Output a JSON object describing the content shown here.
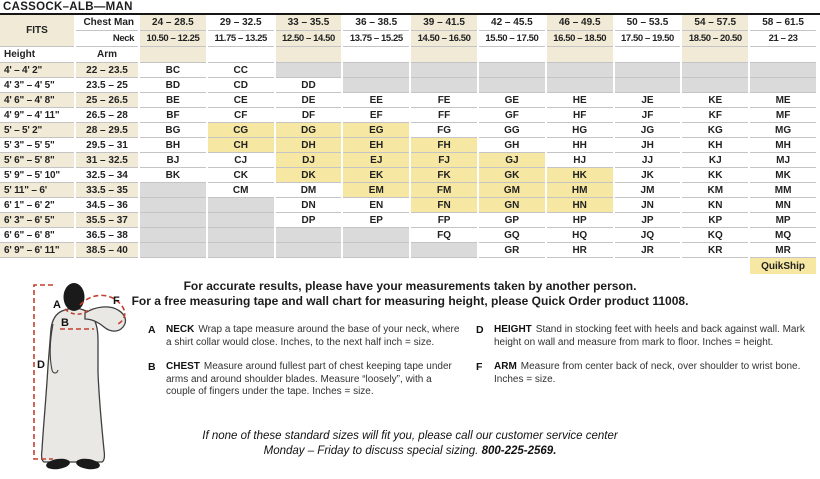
{
  "title": "CASSOCK–ALB—MAN",
  "table": {
    "fits_label": "FITS",
    "chest_row_label": "Chest Man",
    "neck_row_label": "Neck",
    "height_col_label": "Height",
    "arm_col_label": "Arm",
    "chest_ranges": [
      "24 – 28.5",
      "29 – 32.5",
      "33 – 35.5",
      "36 – 38.5",
      "39 – 41.5",
      "42 – 45.5",
      "46 – 49.5",
      "50 – 53.5",
      "54 – 57.5",
      "58 – 61.5"
    ],
    "neck_ranges": [
      "10.50 – 12.25",
      "11.75 – 13.25",
      "12.50 – 14.50",
      "13.75 – 15.25",
      "14.50 – 16.50",
      "15.50 – 17.50",
      "16.50 – 18.50",
      "17.50 – 19.50",
      "18.50 – 20.50",
      "21 – 23"
    ],
    "rows": [
      {
        "height": "4' – 4' 2\"",
        "arm": "22 – 23.5",
        "cells": [
          "BC",
          "CC",
          "",
          "",
          "",
          "",
          "",
          "",
          "",
          ""
        ],
        "states": [
          "n",
          "n",
          "x",
          "x",
          "x",
          "x",
          "x",
          "x",
          "x",
          "x"
        ]
      },
      {
        "height": "4' 3\" – 4' 5\"",
        "arm": "23.5 – 25",
        "cells": [
          "BD",
          "CD",
          "DD",
          "",
          "",
          "",
          "",
          "",
          "",
          ""
        ],
        "states": [
          "n",
          "n",
          "n",
          "x",
          "x",
          "x",
          "x",
          "x",
          "x",
          "x"
        ]
      },
      {
        "height": "4' 6\" – 4' 8\"",
        "arm": "25 – 26.5",
        "cells": [
          "BE",
          "CE",
          "DE",
          "EE",
          "FE",
          "GE",
          "HE",
          "JE",
          "KE",
          "ME"
        ],
        "states": [
          "n",
          "n",
          "n",
          "n",
          "n",
          "n",
          "n",
          "n",
          "n",
          "n"
        ]
      },
      {
        "height": "4' 9\" – 4' 11\"",
        "arm": "26.5 – 28",
        "cells": [
          "BF",
          "CF",
          "DF",
          "EF",
          "FF",
          "GF",
          "HF",
          "JF",
          "KF",
          "MF"
        ],
        "states": [
          "n",
          "n",
          "n",
          "n",
          "n",
          "n",
          "n",
          "n",
          "n",
          "n"
        ]
      },
      {
        "height": "5' – 5' 2\"",
        "arm": "28 – 29.5",
        "cells": [
          "BG",
          "CG",
          "DG",
          "EG",
          "FG",
          "GG",
          "HG",
          "JG",
          "KG",
          "MG"
        ],
        "states": [
          "n",
          "q",
          "q",
          "q",
          "n",
          "n",
          "n",
          "n",
          "n",
          "n"
        ]
      },
      {
        "height": "5' 3\" – 5' 5\"",
        "arm": "29.5 – 31",
        "cells": [
          "BH",
          "CH",
          "DH",
          "EH",
          "FH",
          "GH",
          "HH",
          "JH",
          "KH",
          "MH"
        ],
        "states": [
          "n",
          "q",
          "q",
          "q",
          "q",
          "n",
          "n",
          "n",
          "n",
          "n"
        ]
      },
      {
        "height": "5' 6\" – 5' 8\"",
        "arm": "31 – 32.5",
        "cells": [
          "BJ",
          "CJ",
          "DJ",
          "EJ",
          "FJ",
          "GJ",
          "HJ",
          "JJ",
          "KJ",
          "MJ"
        ],
        "states": [
          "n",
          "n",
          "q",
          "q",
          "q",
          "q",
          "n",
          "n",
          "n",
          "n"
        ]
      },
      {
        "height": "5' 9\" – 5' 10\"",
        "arm": "32.5 – 34",
        "cells": [
          "BK",
          "CK",
          "DK",
          "EK",
          "FK",
          "GK",
          "HK",
          "JK",
          "KK",
          "MK"
        ],
        "states": [
          "n",
          "n",
          "q",
          "q",
          "q",
          "q",
          "q",
          "n",
          "n",
          "n"
        ]
      },
      {
        "height": "5' 11\" – 6'",
        "arm": "33.5 – 35",
        "cells": [
          "",
          "CM",
          "DM",
          "EM",
          "FM",
          "GM",
          "HM",
          "JM",
          "KM",
          "MM"
        ],
        "states": [
          "x",
          "n",
          "n",
          "q",
          "q",
          "q",
          "q",
          "n",
          "n",
          "n"
        ]
      },
      {
        "height": "6' 1\" – 6' 2\"",
        "arm": "34.5 – 36",
        "cells": [
          "",
          "",
          "DN",
          "EN",
          "FN",
          "GN",
          "HN",
          "JN",
          "KN",
          "MN"
        ],
        "states": [
          "x",
          "x",
          "n",
          "n",
          "q",
          "q",
          "q",
          "n",
          "n",
          "n"
        ]
      },
      {
        "height": "6' 3\" – 6' 5\"",
        "arm": "35.5 – 37",
        "cells": [
          "",
          "",
          "DP",
          "EP",
          "FP",
          "GP",
          "HP",
          "JP",
          "KP",
          "MP"
        ],
        "states": [
          "x",
          "x",
          "n",
          "n",
          "n",
          "n",
          "n",
          "n",
          "n",
          "n"
        ]
      },
      {
        "height": "6' 6\" – 6' 8\"",
        "arm": "36.5 – 38",
        "cells": [
          "",
          "",
          "",
          "",
          "FQ",
          "GQ",
          "HQ",
          "JQ",
          "KQ",
          "MQ"
        ],
        "states": [
          "x",
          "x",
          "x",
          "x",
          "n",
          "n",
          "n",
          "n",
          "n",
          "n"
        ]
      },
      {
        "height": "6' 9\" – 6' 11\"",
        "arm": "38.5 – 40",
        "cells": [
          "",
          "",
          "",
          "",
          "",
          "GR",
          "HR",
          "JR",
          "KR",
          "MR"
        ],
        "states": [
          "x",
          "x",
          "x",
          "x",
          "x",
          "n",
          "n",
          "n",
          "n",
          "n"
        ]
      }
    ],
    "quikship_label": "QuikShip"
  },
  "notes": {
    "line1": "For accurate results, please have your measurements taken by another person.",
    "line2": "For a free measuring tape and wall chart for measuring height, please Quick Order product 11008."
  },
  "instructions": [
    {
      "letter": "A",
      "term": "NECK",
      "text": "Wrap a tape measure around the base of your neck, where a shirt collar would close. Inches, to the next half inch = size."
    },
    {
      "letter": "B",
      "term": "CHEST",
      "text": "Measure around fullest part of chest keeping tape under arms and around shoulder blades. Measure “loosely”, with a couple of fingers under the tape. Inches = size."
    },
    {
      "letter": "D",
      "term": "HEIGHT",
      "text": "Stand in stocking feet with heels and back against wall. Mark height on wall and measure from mark to floor. Inches = height."
    },
    {
      "letter": "F",
      "term": "ARM",
      "text": "Measure from center back of neck, over shoulder to wrist bone. Inches = size."
    }
  ],
  "figure_labels": {
    "a": "A",
    "b": "B",
    "d": "D",
    "f": "F"
  },
  "footer": {
    "line1": "If none of these standard sizes will fit you, please call our customer service center",
    "line2_prefix": "Monday – Friday to discuss special sizing. ",
    "phone": "800-225-2569."
  },
  "colors": {
    "header_beige": "#f0ead6",
    "quikship_yellow": "#f6e8a2",
    "unavailable_gray": "#dadada",
    "measure_line_red": "#c2402e",
    "text": "#1c1c1c"
  }
}
